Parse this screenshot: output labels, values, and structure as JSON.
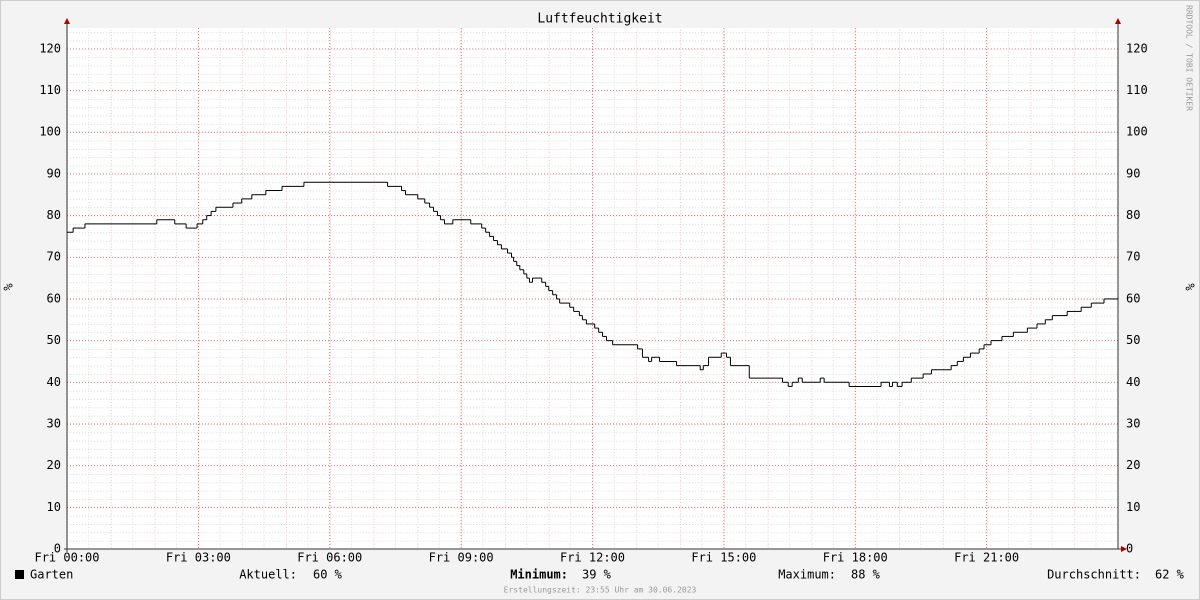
{
  "chart_data": {
    "type": "line",
    "title": "Luftfeuchtigkeit",
    "y_label": "%",
    "watermark": "RRDTOOL / TOBI OETIKER",
    "x": [
      0,
      0.14,
      0.41,
      2.05,
      2.46,
      2.72,
      2.97,
      3.1,
      3.19,
      3.29,
      3.4,
      3.79,
      3.99,
      4.22,
      4.54,
      4.91,
      5.41,
      7.32,
      7.64,
      7.73,
      8.01,
      8.17,
      8.28,
      8.37,
      8.46,
      8.53,
      8.62,
      8.81,
      9.22,
      9.47,
      9.56,
      9.65,
      9.74,
      9.83,
      9.92,
      10.06,
      10.15,
      10.2,
      10.27,
      10.34,
      10.43,
      10.5,
      10.56,
      10.63,
      10.84,
      10.93,
      11.0,
      11.09,
      11.18,
      11.25,
      11.48,
      11.57,
      11.7,
      11.77,
      11.86,
      12.05,
      12.14,
      12.23,
      12.32,
      12.46,
      13.03,
      13.14,
      13.28,
      13.35,
      13.53,
      13.92,
      14.46,
      14.53,
      14.65,
      14.94,
      15.06,
      15.15,
      15.58,
      16.34,
      16.47,
      16.56,
      16.7,
      16.79,
      17.2,
      17.29,
      17.86,
      18.59,
      18.78,
      18.85,
      18.96,
      19.07,
      19.28,
      19.55,
      19.74,
      20.19,
      20.33,
      20.47,
      20.63,
      20.83,
      20.94,
      21.1,
      21.35,
      21.61,
      21.93,
      22.15,
      22.34,
      22.5,
      22.84,
      23.16,
      23.39,
      23.68,
      24
    ],
    "series": [
      {
        "name": "Garten",
        "color": "#000000",
        "values": [
          76,
          77,
          78,
          79,
          78,
          77,
          78,
          79,
          80,
          81,
          82,
          83,
          84,
          85,
          86,
          87,
          88,
          87,
          86,
          85,
          84,
          83,
          82,
          81,
          80,
          79,
          78,
          79,
          78,
          77,
          76,
          75,
          74,
          73,
          72,
          71,
          70,
          69,
          68,
          67,
          66,
          65,
          64,
          65,
          64,
          63,
          62,
          61,
          60,
          59,
          58,
          57,
          56,
          55,
          54,
          53,
          52,
          51,
          50,
          49,
          48,
          46,
          45,
          46,
          45,
          44,
          43,
          44,
          46,
          47,
          46,
          44,
          41,
          40,
          39,
          40,
          41,
          40,
          41,
          40,
          39,
          40,
          39,
          40,
          39,
          40,
          41,
          42,
          43,
          44,
          45,
          46,
          47,
          48,
          49,
          50,
          51,
          52,
          53,
          54,
          55,
          56,
          57,
          58,
          59,
          60,
          60
        ]
      }
    ],
    "xlim": [
      0,
      24
    ],
    "xticks": [
      {
        "value": 0,
        "label": "Fri 00:00"
      },
      {
        "value": 3,
        "label": "Fri 03:00"
      },
      {
        "value": 6,
        "label": "Fri 06:00"
      },
      {
        "value": 9,
        "label": "Fri 09:00"
      },
      {
        "value": 12,
        "label": "Fri 12:00"
      },
      {
        "value": 15,
        "label": "Fri 15:00"
      },
      {
        "value": 18,
        "label": "Fri 18:00"
      },
      {
        "value": 21,
        "label": "Fri 21:00"
      }
    ],
    "ylim": [
      0,
      125
    ],
    "yticks": [
      0,
      10,
      20,
      30,
      40,
      50,
      60,
      70,
      80,
      90,
      100,
      110,
      120
    ],
    "grid": true,
    "stats": {
      "labels": [
        "Aktuell:",
        "Minimum:",
        "Maximum:",
        "Durchschnitt:"
      ],
      "values": [
        60,
        39,
        88,
        62
      ],
      "value_labels": [
        "60 %",
        "39 %",
        "88 %",
        "62 %"
      ]
    },
    "footer": "Erstellungszeit: 23:55 Uhr am 30.06.2023"
  }
}
